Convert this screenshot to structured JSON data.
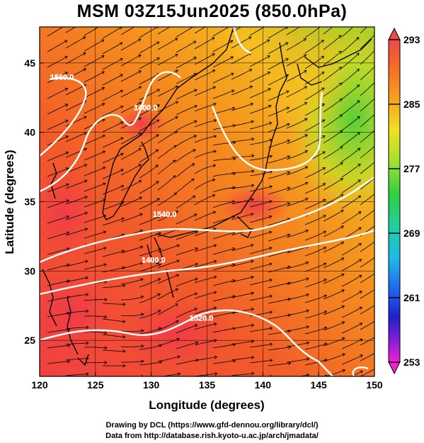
{
  "title": "MSM 03Z15Jun2025 (850.0hPa)",
  "axes": {
    "xlabel": "Longitude (degrees)",
    "ylabel": "Latitude  (degrees)",
    "x_ticks": [
      "120",
      "125",
      "130",
      "135",
      "140",
      "145",
      "150"
    ],
    "x_tick_values": [
      120,
      125,
      130,
      135,
      140,
      145,
      150
    ],
    "y_ticks": [
      "25",
      "30",
      "35",
      "40",
      "45"
    ],
    "y_tick_values": [
      25,
      30,
      35,
      40,
      45
    ],
    "xlim": [
      120,
      150
    ],
    "ylim": [
      22.4,
      47.6
    ]
  },
  "colorbar": {
    "ticks": [
      "293",
      "285",
      "277",
      "269",
      "261",
      "253"
    ],
    "tick_values": [
      293,
      285,
      277,
      269,
      261,
      253
    ],
    "range": [
      253,
      293
    ]
  },
  "contour_labels": [
    {
      "text": "1560.0",
      "lon": 122.0,
      "lat": 43.8
    },
    {
      "text": "1400.0",
      "lon": 129.5,
      "lat": 41.6
    },
    {
      "text": "1540.0",
      "lon": 131.2,
      "lat": 33.9
    },
    {
      "text": "1400.0",
      "lon": 130.2,
      "lat": 30.6
    },
    {
      "text": "1520.0",
      "lon": 134.5,
      "lat": 26.4
    }
  ],
  "credits": {
    "line1": "Drawing by DCL (https://www.gfd-dennou.org/library/dcl/)",
    "line2": "Data from http://database.rish.kyoto-u.ac.jp/arch/jmadata/"
  }
}
